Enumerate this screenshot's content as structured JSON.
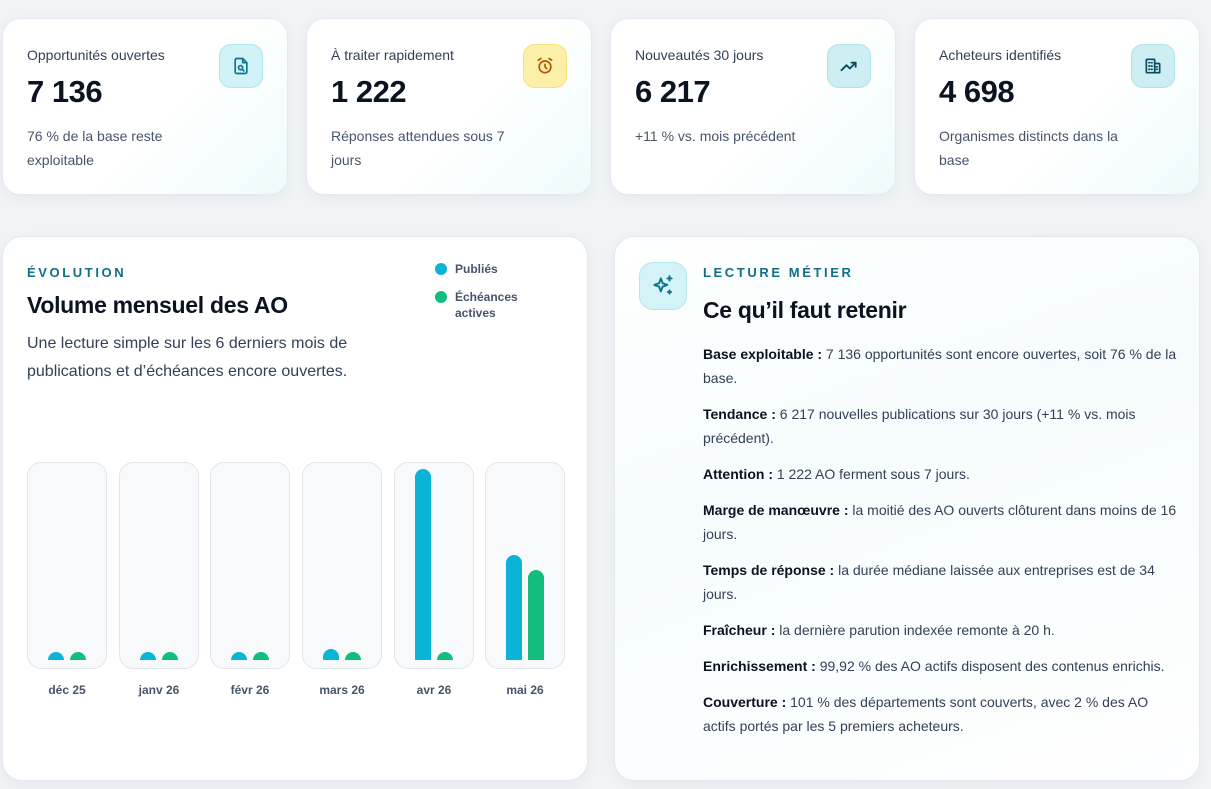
{
  "kpis": [
    {
      "label": "Opportunités ouvertes",
      "value": "7 136",
      "sub": "76 % de la base reste exploitable",
      "icon": "document-search-icon"
    },
    {
      "label": "À traiter rapidement",
      "value": "1 222",
      "sub": "Réponses attendues sous 7 jours",
      "icon": "alarm-clock-icon"
    },
    {
      "label": "Nouveautés 30 jours",
      "value": "6 217",
      "sub": "+11 % vs. mois précédent",
      "icon": "trending-up-icon"
    },
    {
      "label": "Acheteurs identifiés",
      "value": "4 698",
      "sub": "Organismes distincts dans la base",
      "icon": "building-icon"
    }
  ],
  "evolution": {
    "eyebrow": "ÉVOLUTION",
    "title": "Volume mensuel des AO",
    "description": "Une lecture simple sur les 6 derniers mois de publications et d’échéances encore ouvertes.",
    "legend": [
      {
        "label": "Publiés",
        "color": "#0bb4d6"
      },
      {
        "label": "Échéances actives",
        "color": "#12bd7e"
      }
    ]
  },
  "chart_data": {
    "type": "bar",
    "categories": [
      "déc 25",
      "janv 26",
      "févr 26",
      "mars 26",
      "avr 26",
      "mai 26"
    ],
    "series": [
      {
        "name": "Publiés",
        "values": [
          0.04,
          0.04,
          0.04,
          0.06,
          1.0,
          0.55
        ],
        "color": "#0bb4d6"
      },
      {
        "name": "Échéances actives",
        "values": [
          0.04,
          0.04,
          0.04,
          0.04,
          0.04,
          0.47
        ],
        "color": "#12bd7e"
      }
    ],
    "title": "Volume mensuel des AO",
    "xlabel": "",
    "ylabel": "",
    "ylim": [
      0,
      1
    ],
    "grid": false,
    "legend_position": "top-right"
  },
  "insights": {
    "eyebrow": "LECTURE MÉTIER",
    "title": "Ce qu’il faut retenir",
    "items": [
      {
        "label": "Base exploitable :",
        "text": " 7 136 opportunités sont encore ouvertes, soit 76 % de la base."
      },
      {
        "label": "Tendance :",
        "text": " 6 217 nouvelles publications sur 30 jours (+11 % vs. mois précédent)."
      },
      {
        "label": "Attention :",
        "text": " 1 222 AO ferment sous 7 jours."
      },
      {
        "label": "Marge de manœuvre :",
        "text": " la moitié des AO ouverts clôturent dans moins de 16 jours."
      },
      {
        "label": "Temps de réponse :",
        "text": " la durée médiane laissée aux entreprises est de 34 jours."
      },
      {
        "label": "Fraîcheur :",
        "text": " la dernière parution indexée remonte à 20 h."
      },
      {
        "label": "Enrichissement :",
        "text": " 99,92 % des AO actifs disposent des contenus enrichis."
      },
      {
        "label": "Couverture :",
        "text": " 101 % des départements sont couverts, avec 2 % des AO actifs portés par les 5 premiers acheteurs."
      }
    ]
  }
}
